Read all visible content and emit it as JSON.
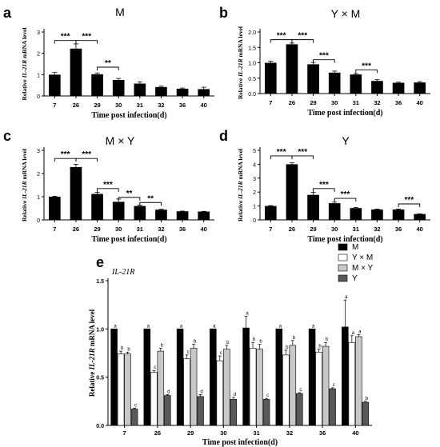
{
  "chart_data": [
    {
      "panel_label": "a",
      "type": "bar",
      "title": "M",
      "xlabel": "Time post infection(d)",
      "ylabel_prefix": "Relative ",
      "ylabel_gene": "IL-21R",
      "ylabel_suffix": " mRNA level",
      "categories": [
        "7",
        "26",
        "29",
        "30",
        "31",
        "32",
        "36",
        "40"
      ],
      "values": [
        1.0,
        2.22,
        1.02,
        0.75,
        0.58,
        0.42,
        0.34,
        0.32
      ],
      "errors": [
        0.1,
        0.22,
        0.06,
        0.07,
        0.08,
        0.04,
        0.03,
        0.09
      ],
      "ylim": [
        0,
        3
      ],
      "yticks": [
        "0",
        "1",
        "2",
        "3"
      ],
      "significance": [
        {
          "from": 0,
          "to": 1,
          "label": "***",
          "level": 2.6
        },
        {
          "from": 1,
          "to": 2,
          "label": "***",
          "level": 2.6
        },
        {
          "from": 2,
          "to": 3,
          "label": "**",
          "level": 1.35
        }
      ]
    },
    {
      "panel_label": "b",
      "type": "bar",
      "title": "Y × M",
      "xlabel": "Time post infection(d)",
      "ylabel_prefix": "Relative ",
      "ylabel_gene": "IL-21R",
      "ylabel_suffix": " mRNA level",
      "categories": [
        "7",
        "26",
        "29",
        "30",
        "31",
        "32",
        "36",
        "40"
      ],
      "values": [
        1.0,
        1.6,
        0.95,
        0.68,
        0.62,
        0.41,
        0.35,
        0.36
      ],
      "errors": [
        0.05,
        0.04,
        0.06,
        0.05,
        0.03,
        0.04,
        0.02,
        0.03
      ],
      "ylim": [
        0,
        2.0
      ],
      "yticks": [
        "0.0",
        "0.5",
        "1.0",
        "1.5",
        "2.0"
      ],
      "significance": [
        {
          "from": 0,
          "to": 1,
          "label": "***",
          "level": 1.75
        },
        {
          "from": 1,
          "to": 2,
          "label": "***",
          "level": 1.75
        },
        {
          "from": 2,
          "to": 3,
          "label": "***",
          "level": 1.1
        },
        {
          "from": 4,
          "to": 5,
          "label": "***",
          "level": 0.77
        }
      ]
    },
    {
      "panel_label": "c",
      "type": "bar",
      "title": "M × Y",
      "xlabel": "Time post infection(d)",
      "ylabel_prefix": "Relative ",
      "ylabel_gene": "IL-21R",
      "ylabel_suffix": " mRNA level",
      "categories": [
        "7",
        "26",
        "29",
        "30",
        "31",
        "32",
        "36",
        "40"
      ],
      "values": [
        1.0,
        2.28,
        1.12,
        0.78,
        0.6,
        0.44,
        0.37,
        0.36
      ],
      "errors": [
        0.02,
        0.12,
        0.07,
        0.12,
        0.04,
        0.02,
        0.01,
        0.01
      ],
      "ylim": [
        0,
        3
      ],
      "yticks": [
        "0",
        "1",
        "2",
        "3"
      ],
      "significance": [
        {
          "from": 0,
          "to": 1,
          "label": "***",
          "level": 2.65
        },
        {
          "from": 1,
          "to": 2,
          "label": "***",
          "level": 2.65
        },
        {
          "from": 2,
          "to": 3,
          "label": "***",
          "level": 1.35
        },
        {
          "from": 3,
          "to": 4,
          "label": "**",
          "level": 0.97
        },
        {
          "from": 4,
          "to": 5,
          "label": "**",
          "level": 0.75
        }
      ]
    },
    {
      "panel_label": "d",
      "type": "bar",
      "title": "Y",
      "xlabel": "Time post infection(d)",
      "ylabel_prefix": "Relative ",
      "ylabel_gene": "IL-21R",
      "ylabel_suffix": " mRNA level",
      "categories": [
        "7",
        "26",
        "29",
        "30",
        "31",
        "32",
        "36",
        "40"
      ],
      "values": [
        1.0,
        4.0,
        1.8,
        1.2,
        0.85,
        0.75,
        0.75,
        0.42
      ],
      "errors": [
        0.03,
        0.1,
        0.18,
        0.08,
        0.05,
        0.03,
        0.03,
        0.02
      ],
      "ylim": [
        0,
        5
      ],
      "yticks": [
        "0",
        "1",
        "2",
        "3",
        "4",
        "5"
      ],
      "significance": [
        {
          "from": 0,
          "to": 1,
          "label": "***",
          "level": 4.6
        },
        {
          "from": 1,
          "to": 2,
          "label": "***",
          "level": 4.6
        },
        {
          "from": 2,
          "to": 3,
          "label": "***",
          "level": 2.25
        },
        {
          "from": 3,
          "to": 4,
          "label": "***",
          "level": 1.55
        },
        {
          "from": 6,
          "to": 7,
          "label": "***",
          "level": 1.15
        }
      ]
    },
    {
      "panel_label": "e",
      "type": "bar",
      "title": "IL-21R",
      "xlabel": "Time post infection(d)",
      "ylabel_prefix": "Relative ",
      "ylabel_gene": "IL-21R",
      "ylabel_suffix": " mRNA level",
      "categories": [
        "7",
        "26",
        "29",
        "30",
        "31",
        "32",
        "36",
        "40"
      ],
      "ylim": [
        0,
        1.5
      ],
      "yticks": [
        "0.0",
        "0.5",
        "1.0",
        "1.5"
      ],
      "legend_position": "top-right",
      "series": [
        {
          "name": "M",
          "color": "#000000",
          "values": [
            1.0,
            1.0,
            1.0,
            1.0,
            1.01,
            1.0,
            1.0,
            1.02
          ],
          "errors": [
            0.0,
            0.0,
            0.0,
            0.0,
            0.12,
            0.0,
            0.0,
            0.28
          ],
          "letters": [
            "a",
            "a",
            "a",
            "a",
            "a",
            "a",
            "a",
            "a"
          ]
        },
        {
          "name": "Y × M",
          "color": "#ffffff",
          "values": [
            0.74,
            0.55,
            0.69,
            0.67,
            0.8,
            0.73,
            0.76,
            0.86
          ],
          "errors": [
            0.03,
            0.02,
            0.04,
            0.05,
            0.06,
            0.05,
            0.03,
            0.07
          ],
          "letters": [
            "b",
            "c",
            "c",
            "c",
            "b",
            "b",
            "b",
            "a"
          ]
        },
        {
          "name": "M × Y",
          "color": "#c8c8c8",
          "values": [
            0.74,
            0.77,
            0.8,
            0.79,
            0.79,
            0.83,
            0.82,
            0.92
          ],
          "errors": [
            0.02,
            0.03,
            0.04,
            0.04,
            0.05,
            0.05,
            0.04,
            0.02
          ],
          "letters": [
            "b",
            "b",
            "b",
            "b",
            "b",
            "b",
            "b",
            "a"
          ]
        },
        {
          "name": "Y",
          "color": "#595959",
          "values": [
            0.17,
            0.31,
            0.3,
            0.27,
            0.27,
            0.33,
            0.38,
            0.24
          ],
          "errors": [
            0.01,
            0.01,
            0.02,
            0.02,
            0.01,
            0.01,
            0.01,
            0.01
          ],
          "letters": [
            "c",
            "d",
            "d",
            "d",
            "c",
            "c",
            "c",
            "b"
          ]
        }
      ]
    }
  ]
}
